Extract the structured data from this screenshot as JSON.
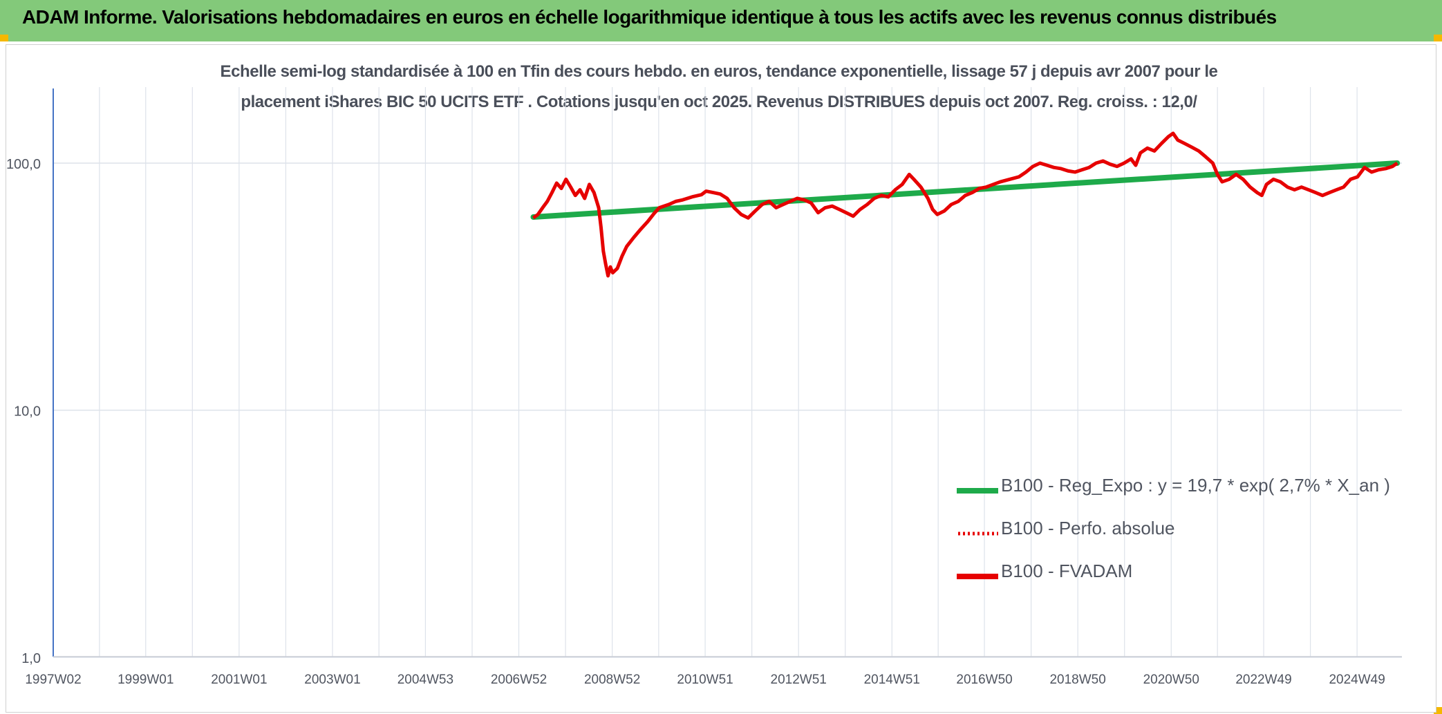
{
  "header": {
    "title": "ADAM Informe. Valorisations hebdomadaires en euros en échelle logarithmique identique à tous les actifs avec les revenus connus distribués"
  },
  "colors": {
    "header_bg": "#83c97a",
    "accent_corner": "#f5b800",
    "trend_line": "#1eaa4a",
    "fvadam_line": "#e60000",
    "gridline": "#dde2ea",
    "axis": "#4472c4"
  },
  "chart_data": {
    "type": "line",
    "title_line1": "Echelle semi-log standardisée à 100 en Tfin des cours hebdo. en euros, tendance exponentielle, lissage 57 j depuis avr 2007 pour le",
    "title_line2": "placement iShares BIC 50 UCITS ETF . Cotations jusqu'en oct 2025. Revenus DISTRIBUES depuis oct 2007. Reg. croiss. : 12,0/",
    "y_scale": "log",
    "ylim": [
      1,
      200
    ],
    "y_ticks": [
      {
        "value": 1,
        "label": "1,0"
      },
      {
        "value": 10,
        "label": "10,0"
      },
      {
        "value": 100,
        "label": "100,0"
      }
    ],
    "x_range": [
      1997.02,
      2025.9
    ],
    "x_ticks": [
      {
        "value": 1997.02,
        "label": "1997W02"
      },
      {
        "value": 1999.0,
        "label": "1999W01"
      },
      {
        "value": 2001.0,
        "label": "2001W01"
      },
      {
        "value": 2003.0,
        "label": "2003W01"
      },
      {
        "value": 2004.99,
        "label": "2004W53"
      },
      {
        "value": 2006.99,
        "label": "2006W52"
      },
      {
        "value": 2008.99,
        "label": "2008W52"
      },
      {
        "value": 2010.98,
        "label": "2010W51"
      },
      {
        "value": 2012.98,
        "label": "2012W51"
      },
      {
        "value": 2014.98,
        "label": "2014W51"
      },
      {
        "value": 2016.96,
        "label": "2016W50"
      },
      {
        "value": 2018.96,
        "label": "2018W50"
      },
      {
        "value": 2020.96,
        "label": "2020W50"
      },
      {
        "value": 2022.94,
        "label": "2022W49"
      },
      {
        "value": 2024.94,
        "label": "2024W49"
      }
    ],
    "grid": true,
    "legend_position": "bottom-right",
    "series": [
      {
        "name": "B100 - Reg_Expo : y = 19,7 * exp( 2,7% *  X_an )",
        "style": "solid",
        "points": [
          [
            2007.3,
            60.5
          ],
          [
            2025.8,
            100.0
          ]
        ]
      },
      {
        "name": "B100 - Perfo. absolue",
        "style": "dotted",
        "points": []
      },
      {
        "name": "B100 - FVADAM",
        "style": "solid",
        "points": [
          [
            2007.3,
            60.0
          ],
          [
            2007.4,
            62.0
          ],
          [
            2007.5,
            66.0
          ],
          [
            2007.6,
            70.0
          ],
          [
            2007.7,
            76.0
          ],
          [
            2007.8,
            83.0
          ],
          [
            2007.9,
            79.0
          ],
          [
            2008.0,
            86.0
          ],
          [
            2008.1,
            80.0
          ],
          [
            2008.2,
            74.0
          ],
          [
            2008.3,
            78.0
          ],
          [
            2008.4,
            72.0
          ],
          [
            2008.5,
            82.0
          ],
          [
            2008.6,
            76.0
          ],
          [
            2008.7,
            66.0
          ],
          [
            2008.75,
            55.0
          ],
          [
            2008.8,
            44.0
          ],
          [
            2008.85,
            39.0
          ],
          [
            2008.9,
            35.0
          ],
          [
            2008.95,
            38.0
          ],
          [
            2009.0,
            36.0
          ],
          [
            2009.1,
            37.5
          ],
          [
            2009.2,
            42.0
          ],
          [
            2009.3,
            46.0
          ],
          [
            2009.45,
            50.0
          ],
          [
            2009.6,
            54.0
          ],
          [
            2009.75,
            58.0
          ],
          [
            2009.9,
            63.0
          ],
          [
            2010.0,
            66.0
          ],
          [
            2010.2,
            68.0
          ],
          [
            2010.35,
            70.0
          ],
          [
            2010.5,
            71.0
          ],
          [
            2010.7,
            73.0
          ],
          [
            2010.9,
            74.5
          ],
          [
            2011.0,
            77.0
          ],
          [
            2011.15,
            76.0
          ],
          [
            2011.3,
            75.0
          ],
          [
            2011.45,
            72.0
          ],
          [
            2011.6,
            66.0
          ],
          [
            2011.75,
            62.0
          ],
          [
            2011.9,
            60.0
          ],
          [
            2012.05,
            64.0
          ],
          [
            2012.2,
            68.0
          ],
          [
            2012.35,
            70.0
          ],
          [
            2012.5,
            66.0
          ],
          [
            2012.65,
            68.0
          ],
          [
            2012.8,
            70.0
          ],
          [
            2012.95,
            72.0
          ],
          [
            2013.1,
            71.0
          ],
          [
            2013.25,
            69.0
          ],
          [
            2013.4,
            63.0
          ],
          [
            2013.55,
            66.0
          ],
          [
            2013.7,
            67.0
          ],
          [
            2013.85,
            65.0
          ],
          [
            2014.0,
            63.0
          ],
          [
            2014.15,
            61.0
          ],
          [
            2014.3,
            65.0
          ],
          [
            2014.45,
            68.0
          ],
          [
            2014.6,
            72.0
          ],
          [
            2014.75,
            74.0
          ],
          [
            2014.9,
            73.0
          ],
          [
            2015.05,
            78.0
          ],
          [
            2015.2,
            82.0
          ],
          [
            2015.35,
            90.0
          ],
          [
            2015.45,
            86.0
          ],
          [
            2015.6,
            80.0
          ],
          [
            2015.75,
            72.0
          ],
          [
            2015.85,
            65.0
          ],
          [
            2015.95,
            62.0
          ],
          [
            2016.1,
            64.0
          ],
          [
            2016.25,
            68.0
          ],
          [
            2016.4,
            70.0
          ],
          [
            2016.55,
            74.0
          ],
          [
            2016.7,
            76.0
          ],
          [
            2016.85,
            79.0
          ],
          [
            2017.0,
            80.0
          ],
          [
            2017.15,
            82.0
          ],
          [
            2017.3,
            84.0
          ],
          [
            2017.5,
            86.0
          ],
          [
            2017.7,
            88.0
          ],
          [
            2017.85,
            92.0
          ],
          [
            2018.0,
            97.0
          ],
          [
            2018.15,
            100.0
          ],
          [
            2018.3,
            98.0
          ],
          [
            2018.45,
            96.0
          ],
          [
            2018.6,
            95.0
          ],
          [
            2018.75,
            93.0
          ],
          [
            2018.9,
            92.0
          ],
          [
            2019.05,
            94.0
          ],
          [
            2019.2,
            96.0
          ],
          [
            2019.35,
            100.0
          ],
          [
            2019.5,
            102.0
          ],
          [
            2019.65,
            99.0
          ],
          [
            2019.8,
            97.0
          ],
          [
            2019.95,
            100.0
          ],
          [
            2020.1,
            104.0
          ],
          [
            2020.2,
            98.0
          ],
          [
            2020.3,
            110.0
          ],
          [
            2020.45,
            115.0
          ],
          [
            2020.6,
            112.0
          ],
          [
            2020.75,
            120.0
          ],
          [
            2020.9,
            128.0
          ],
          [
            2021.0,
            132.0
          ],
          [
            2021.1,
            124.0
          ],
          [
            2021.25,
            120.0
          ],
          [
            2021.4,
            116.0
          ],
          [
            2021.55,
            112.0
          ],
          [
            2021.7,
            106.0
          ],
          [
            2021.85,
            100.0
          ],
          [
            2021.95,
            90.0
          ],
          [
            2022.05,
            84.0
          ],
          [
            2022.2,
            86.0
          ],
          [
            2022.35,
            90.0
          ],
          [
            2022.5,
            86.0
          ],
          [
            2022.65,
            80.0
          ],
          [
            2022.8,
            76.0
          ],
          [
            2022.9,
            74.0
          ],
          [
            2023.0,
            82.0
          ],
          [
            2023.15,
            86.0
          ],
          [
            2023.3,
            84.0
          ],
          [
            2023.45,
            80.0
          ],
          [
            2023.6,
            78.0
          ],
          [
            2023.75,
            80.0
          ],
          [
            2023.9,
            78.0
          ],
          [
            2024.05,
            76.0
          ],
          [
            2024.2,
            74.0
          ],
          [
            2024.35,
            76.0
          ],
          [
            2024.5,
            78.0
          ],
          [
            2024.65,
            80.0
          ],
          [
            2024.8,
            86.0
          ],
          [
            2024.95,
            88.0
          ],
          [
            2025.1,
            96.0
          ],
          [
            2025.25,
            92.0
          ],
          [
            2025.4,
            94.0
          ],
          [
            2025.55,
            95.0
          ],
          [
            2025.7,
            97.0
          ],
          [
            2025.8,
            100.0
          ]
        ]
      }
    ]
  }
}
